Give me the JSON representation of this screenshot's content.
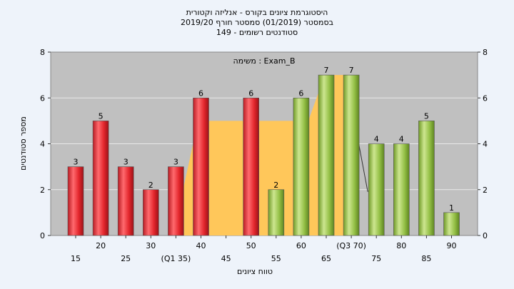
{
  "title": {
    "line1": "היסטוגרמת ציונים בקורס - אנליזה וקטורית",
    "line2": "בסמסטר  (01/2019)  סמסטר חורף 2019/20",
    "line3": "סטודנטים רשומים - 149"
  },
  "chart_data": {
    "type": "bar",
    "task_label": "משימה : Exam_B",
    "ylabel": "מספר סטודנטים",
    "xlabel": "טווח ציונים",
    "ylim": [
      0,
      8
    ],
    "yticks": [
      0,
      2,
      4,
      6,
      8
    ],
    "categories": [
      "15",
      "20",
      "25",
      "30",
      "(Q1 35)",
      "40",
      "45",
      "50",
      "55",
      "60",
      "65",
      "(Q3 70)",
      "75",
      "80",
      "85",
      "90"
    ],
    "values": [
      3,
      5,
      3,
      2,
      3,
      6,
      null,
      6,
      2,
      6,
      7,
      7,
      4,
      4,
      5,
      1
    ],
    "bar_colors": [
      "red",
      "red",
      "red",
      "red",
      "red",
      "red",
      null,
      "red",
      "green",
      "green",
      "green",
      "green",
      "green",
      "green",
      "green",
      "green"
    ],
    "interquartile_band": {
      "from": "(Q1 35)",
      "to": "(Q3 70)",
      "level": 5
    },
    "colors": {
      "red": "#e8353a",
      "green": "#9cc84c",
      "band": "#ffc75a",
      "plot_bg": "#c0c0c0",
      "page_bg": "#eef3fa"
    }
  }
}
